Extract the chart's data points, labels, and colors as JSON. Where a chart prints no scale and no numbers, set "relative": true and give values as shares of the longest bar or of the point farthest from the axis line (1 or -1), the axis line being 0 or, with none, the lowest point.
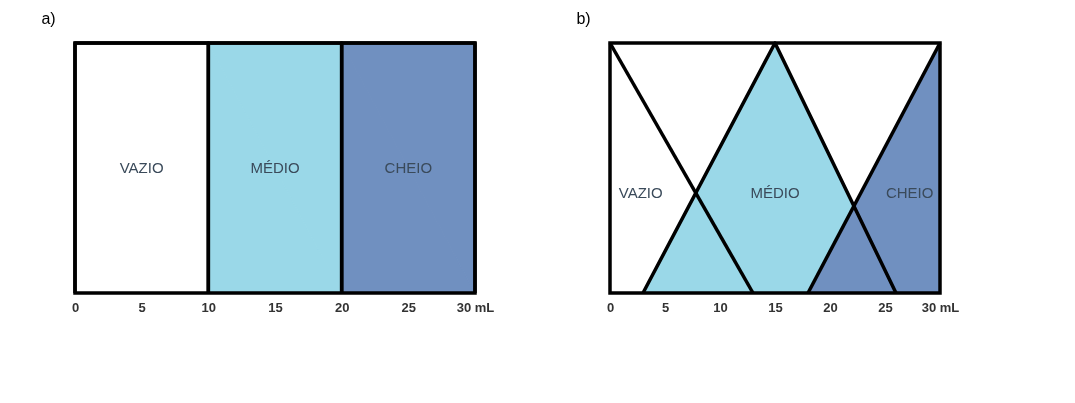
{
  "chart_data": [
    {
      "type": "area",
      "title": "a)",
      "relative": true,
      "xlim": [
        0,
        30
      ],
      "xticks": [
        0,
        5,
        10,
        15,
        20,
        25,
        {
          "value": 30,
          "label": "30 mL"
        }
      ],
      "grid": false,
      "series": [
        {
          "name": "VAZIO",
          "color": "#ffffff",
          "x": [
            0,
            0,
            10,
            10
          ],
          "values": [
            0,
            1,
            1,
            0
          ]
        },
        {
          "name": "MÉDIO",
          "color": "#9ad8e8",
          "x": [
            10,
            10,
            20,
            20
          ],
          "values": [
            0,
            1,
            1,
            0
          ]
        },
        {
          "name": "CHEIO",
          "color": "#7090c0",
          "x": [
            20,
            20,
            30,
            30
          ],
          "values": [
            0,
            1,
            1,
            0
          ]
        }
      ]
    },
    {
      "type": "area",
      "title": "b)",
      "relative": true,
      "xlim": [
        0,
        30
      ],
      "xticks": [
        0,
        5,
        10,
        15,
        20,
        25,
        {
          "value": 30,
          "label": "30 mL"
        }
      ],
      "grid": false,
      "series": [
        {
          "name": "VAZIO",
          "color": "#ffffff",
          "x": [
            0,
            13
          ],
          "values": [
            1,
            0
          ]
        },
        {
          "name": "MÉDIO",
          "color": "#9ad8e8",
          "x": [
            3,
            15,
            26
          ],
          "values": [
            0,
            1,
            0
          ]
        },
        {
          "name": "CHEIO",
          "color": "#7090c0",
          "x": [
            18,
            30
          ],
          "values": [
            0,
            1
          ]
        }
      ]
    }
  ]
}
